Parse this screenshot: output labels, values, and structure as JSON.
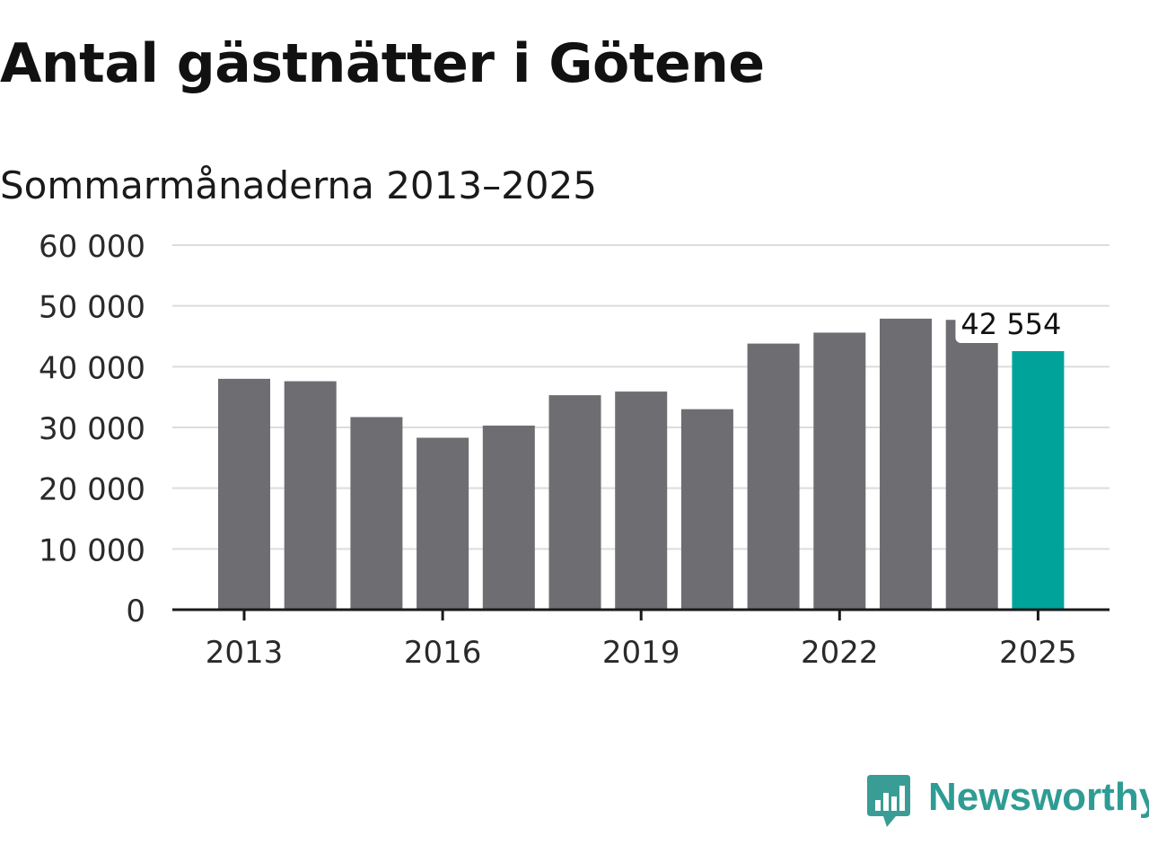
{
  "title": "Antal gästnätter i Götene",
  "subtitle": "Sommarmånaderna 2013–2025",
  "colors": {
    "bar": "#6e6d72",
    "highlight": "#00a39a",
    "grid": "#dcdcdc",
    "axis": "#1a1a1a",
    "brand": "#2f9c94"
  },
  "chart_data": {
    "type": "bar",
    "categories": [
      "2013",
      "2014",
      "2015",
      "2016",
      "2017",
      "2018",
      "2019",
      "2020",
      "2021",
      "2022",
      "2023",
      "2024",
      "2025"
    ],
    "values": [
      38000,
      37600,
      31700,
      28300,
      30300,
      35300,
      35900,
      33000,
      43800,
      45600,
      47900,
      47700,
      42554
    ],
    "highlight_index": 12,
    "highlight_label": "42 554",
    "ylim": [
      0,
      60000
    ],
    "yticks": [
      0,
      10000,
      20000,
      30000,
      40000,
      50000,
      60000
    ],
    "ytick_labels": [
      "0",
      "10 000",
      "20 000",
      "30 000",
      "40 000",
      "50 000",
      "60 000"
    ],
    "xtick_labels": [
      "2013",
      "2016",
      "2019",
      "2022",
      "2025"
    ],
    "xlabel": "",
    "ylabel": "",
    "grid": true
  },
  "brand": {
    "name": "Newsworthy",
    "icon": "newsworthy-logo-icon"
  }
}
